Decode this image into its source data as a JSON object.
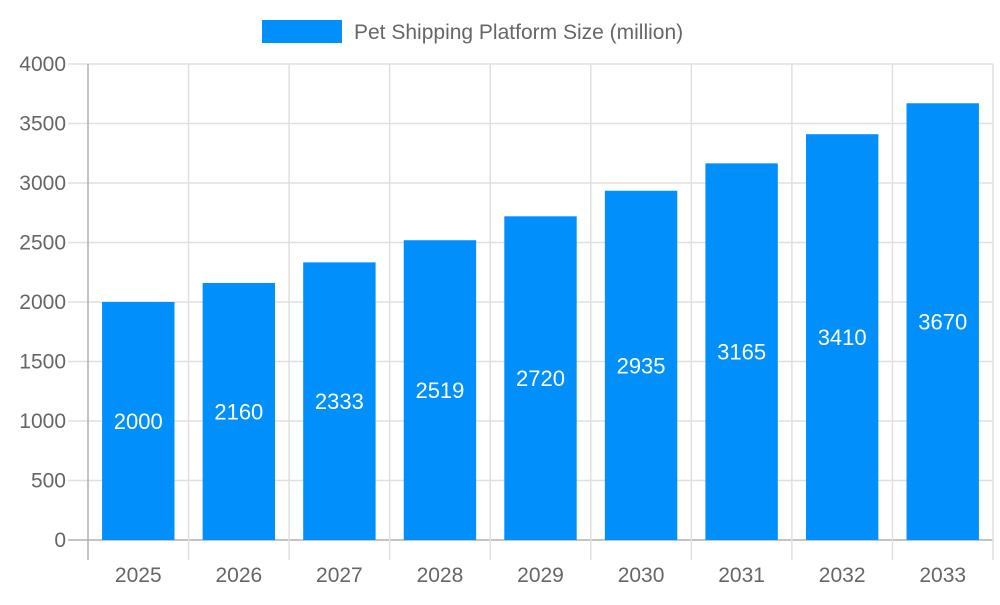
{
  "chart_data": {
    "type": "bar",
    "title": "",
    "xlabel": "",
    "ylabel": "",
    "categories": [
      "2025",
      "2026",
      "2027",
      "2028",
      "2029",
      "2030",
      "2031",
      "2032",
      "2033"
    ],
    "series": [
      {
        "name": "Pet Shipping Platform Size (million)",
        "values": [
          2000,
          2160,
          2333,
          2519,
          2720,
          2935,
          3165,
          3410,
          3670
        ]
      }
    ],
    "ylim": [
      0,
      4000
    ],
    "yticks": [
      0,
      500,
      1000,
      1500,
      2000,
      2500,
      3000,
      3500,
      4000
    ],
    "grid": true,
    "legend_position": "top",
    "data_labels": "inside-center",
    "colors": {
      "bar": "#008ffb",
      "text": "#666666",
      "grid": "#e0e0e0",
      "axis": "#b0b0b0",
      "label": "#ffffff"
    }
  }
}
